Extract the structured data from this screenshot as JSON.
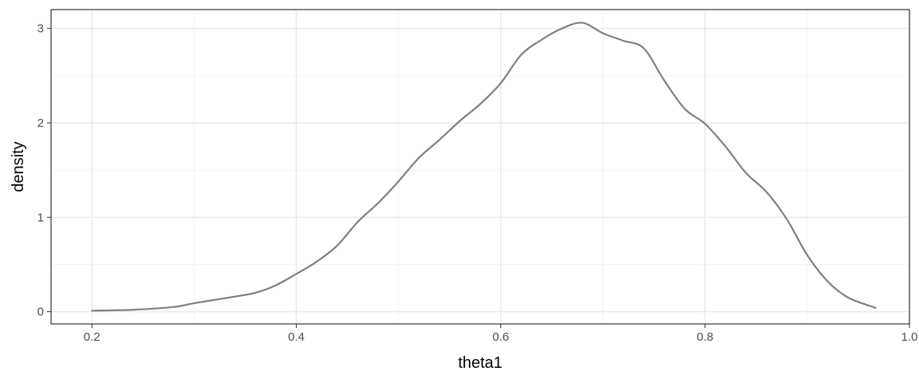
{
  "chart_data": {
    "type": "line",
    "title": "",
    "xlabel": "theta1",
    "ylabel": "density",
    "xlim": [
      0.16,
      1.0
    ],
    "ylim": [
      -0.13,
      3.2
    ],
    "x_ticks": [
      0.2,
      0.4,
      0.6,
      0.8,
      1.0
    ],
    "x_tick_labels": [
      "0.2",
      "0.4",
      "0.6",
      "0.8",
      "1.0"
    ],
    "y_ticks": [
      0,
      1,
      2,
      3
    ],
    "y_tick_labels": [
      "0",
      "1",
      "2",
      "3"
    ],
    "grid": true,
    "legend": "none",
    "series": [
      {
        "color": "#808080",
        "x": [
          0.2,
          0.24,
          0.28,
          0.3,
          0.34,
          0.36,
          0.38,
          0.4,
          0.42,
          0.44,
          0.46,
          0.48,
          0.5,
          0.52,
          0.54,
          0.56,
          0.58,
          0.6,
          0.62,
          0.64,
          0.66,
          0.68,
          0.7,
          0.72,
          0.74,
          0.76,
          0.78,
          0.8,
          0.82,
          0.84,
          0.86,
          0.88,
          0.9,
          0.92,
          0.94,
          0.967
        ],
        "y": [
          0.01,
          0.02,
          0.05,
          0.09,
          0.16,
          0.2,
          0.28,
          0.4,
          0.53,
          0.7,
          0.95,
          1.15,
          1.38,
          1.63,
          1.82,
          2.02,
          2.2,
          2.42,
          2.72,
          2.88,
          3.0,
          3.06,
          2.95,
          2.87,
          2.79,
          2.45,
          2.15,
          1.99,
          1.75,
          1.47,
          1.27,
          0.98,
          0.6,
          0.32,
          0.15,
          0.04
        ]
      }
    ]
  }
}
